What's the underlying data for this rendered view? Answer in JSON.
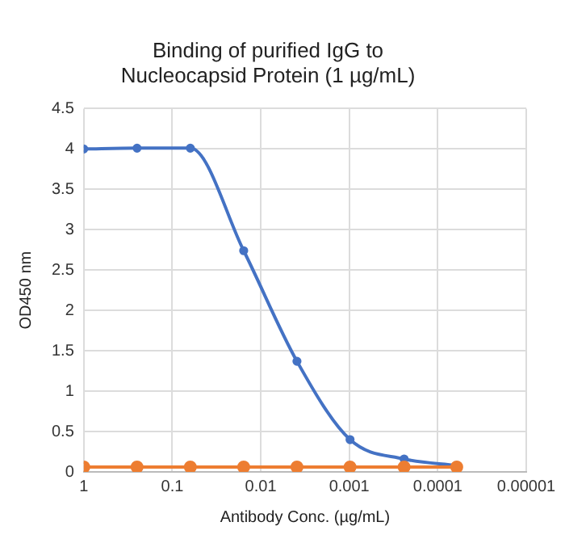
{
  "chart_data": {
    "type": "line",
    "title": "Binding of purified IgG to Nucleocapsid Protein (1 µg/mL)",
    "xlabel": "Antibody Conc. (µg/mL)",
    "ylabel": "OD450 nm",
    "log": "x",
    "x": [
      1,
      0.25,
      0.0625,
      0.0156,
      0.0039,
      0.00098,
      0.00024,
      6.1e-05
    ],
    "series": [
      {
        "color": "#4472c4",
        "values": [
          4.0,
          4.01,
          4.01,
          2.74,
          1.37,
          0.4,
          0.16,
          0.08
        ]
      },
      {
        "color": "#ed7d31",
        "values": [
          0.06,
          0.06,
          0.06,
          0.06,
          0.06,
          0.06,
          0.06,
          0.06
        ]
      }
    ],
    "xlim": [
      1,
      1e-05
    ],
    "xticks": [
      1,
      0.1,
      0.01,
      0.001,
      0.0001,
      {
        "value": 1e-05,
        "label": "0.00001"
      }
    ],
    "ylim": [
      0,
      4.5
    ],
    "yticks": [
      0,
      0.5,
      1,
      1.5,
      2,
      2.5,
      3,
      3.5,
      4,
      4.5
    ],
    "grid": true,
    "legend": false,
    "marker": "circle",
    "line_style": "solid"
  }
}
